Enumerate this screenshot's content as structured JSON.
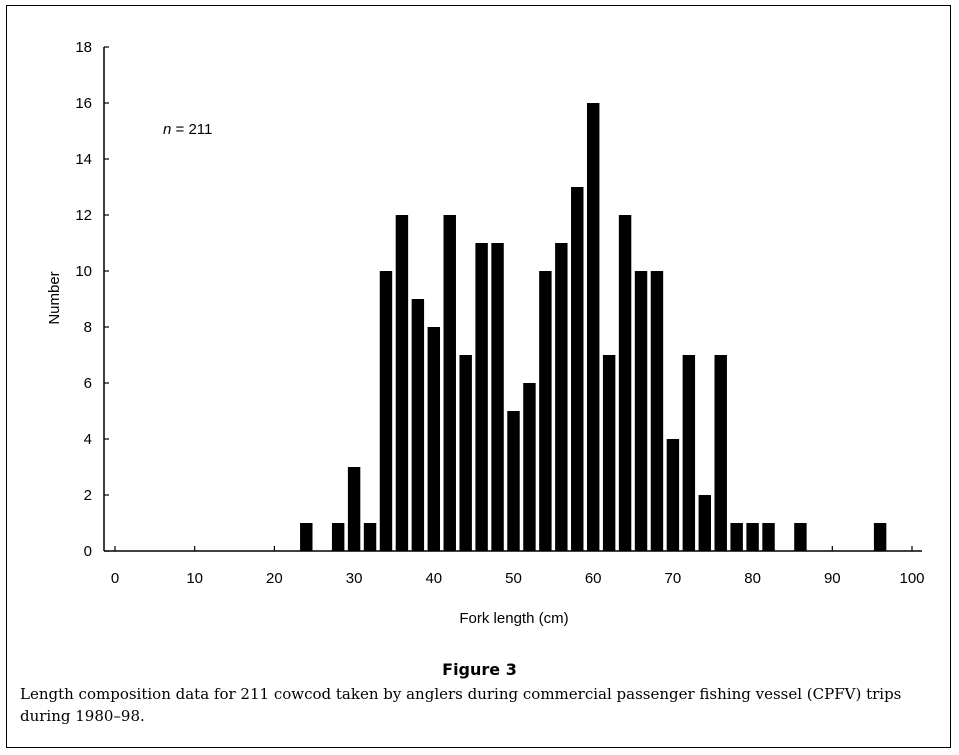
{
  "figure_title": "Figure 3",
  "caption": "Length composition data for 211 cowcod taken by anglers during commercial passenger fishing vessel (CPFV) trips during 1980–98.",
  "annotation": {
    "italic": "n",
    "text": " = 211"
  },
  "chart_data": {
    "type": "bar",
    "xlabel": "Fork length (cm)",
    "ylabel": "Number",
    "xlim": [
      0,
      100
    ],
    "ylim": [
      0,
      18
    ],
    "xticks": [
      0,
      10,
      20,
      30,
      40,
      50,
      60,
      70,
      80,
      90,
      100
    ],
    "yticks": [
      0,
      2,
      4,
      6,
      8,
      10,
      12,
      14,
      16,
      18
    ],
    "grid": false,
    "legend": "none",
    "bar_color": "#000000",
    "x": [
      24,
      28,
      30,
      32,
      34,
      36,
      38,
      40,
      42,
      44,
      46,
      48,
      50,
      52,
      54,
      56,
      58,
      60,
      62,
      64,
      66,
      68,
      70,
      72,
      74,
      76,
      78,
      80,
      82,
      86,
      96
    ],
    "values": [
      1,
      1,
      3,
      1,
      10,
      12,
      9,
      8,
      12,
      7,
      11,
      11,
      5,
      6,
      10,
      11,
      13,
      16,
      7,
      12,
      10,
      10,
      4,
      7,
      2,
      7,
      1,
      1,
      1,
      1,
      1
    ]
  }
}
